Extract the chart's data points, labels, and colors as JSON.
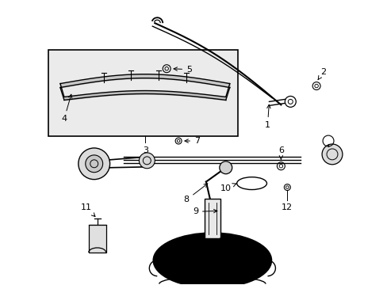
{
  "bg_color": "#ffffff",
  "line_color": "#000000",
  "fig_width": 4.89,
  "fig_height": 3.6,
  "dpi": 100,
  "gray_fill": "#e8e8e8",
  "light_gray": "#d8d8d8"
}
